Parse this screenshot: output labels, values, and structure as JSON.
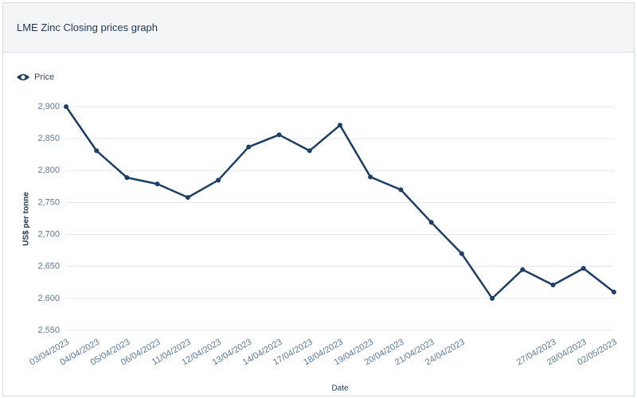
{
  "chart_data": {
    "type": "line",
    "title": "LME Zinc Closing prices graph",
    "y_label": "US$ per tonne",
    "x_label": "Date",
    "categories": [
      "03/04/2023",
      "04/04/2023",
      "05/04/2023",
      "06/04/2023",
      "11/04/2023",
      "12/04/2023",
      "13/04/2023",
      "14/04/2023",
      "17/04/2023",
      "18/04/2023",
      "19/04/2023",
      "20/04/2023",
      "21/04/2023",
      "24/04/2023",
      null,
      null,
      "27/04/2023",
      "28/04/2023",
      "02/05/2023"
    ],
    "series": [
      {
        "name": "Price",
        "color": "#1d3f66",
        "values": [
          2900,
          2831,
          2789,
          2779,
          2758,
          2785,
          2837,
          2856,
          2831,
          2871,
          2790,
          2770,
          2719,
          2670,
          2600,
          2645,
          2621,
          2647,
          2610
        ]
      }
    ],
    "ylim": [
      2550,
      2900
    ],
    "yticks": [
      {
        "value": 2550,
        "label": "2,550"
      },
      {
        "value": 2600,
        "label": "2,600"
      },
      {
        "value": 2650,
        "label": "2,650"
      },
      {
        "value": 2700,
        "label": "2,700"
      },
      {
        "value": 2750,
        "label": "2,750"
      },
      {
        "value": 2800,
        "label": "2,800"
      },
      {
        "value": 2850,
        "label": "2,850"
      },
      {
        "value": 2900,
        "label": "2,900"
      }
    ],
    "grid": true
  }
}
